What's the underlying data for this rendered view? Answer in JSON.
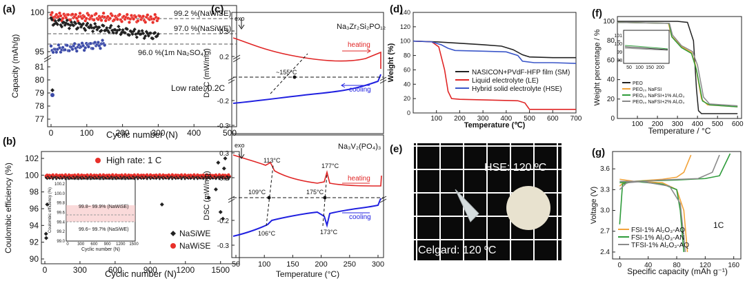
{
  "panel_labels": {
    "a": "(a)",
    "b": "(b)",
    "c": "(c)",
    "d": "(d)",
    "e": "(e)",
    "f": "(f)",
    "g": "(g)"
  },
  "chart_data": [
    {
      "panel": "a",
      "type": "scatter",
      "xlabel": "Cyclic number (N)",
      "ylabel": "Capacity (mAh/g)",
      "xticks": [
        "0",
        "100",
        "200",
        "300",
        "400",
        "500"
      ],
      "yticks_top": [
        "100",
        "95"
      ],
      "yticks_bottom": [
        "81",
        "80",
        "79",
        "78",
        "77"
      ],
      "annotations": [
        "99.2 %(NaWiSE)",
        "97.0 %(NaSiWE)",
        "96.0 %(1m Na₂SO₄)",
        "Low rate: 0.2C"
      ],
      "series": [
        {
          "name": "NaWiSE",
          "color": "#e8302a",
          "x": [
            0,
            300
          ],
          "y_start": 99.5,
          "y_end": 99.2
        },
        {
          "name": "NaSiWE",
          "color": "#222222",
          "x": [
            0,
            300
          ],
          "y_start": 98.8,
          "y_end": 97.0
        },
        {
          "name": "1m Na2SO4",
          "color": "#3b4aa8",
          "x": [
            0,
            150
          ],
          "y_start": 95.2,
          "y_end": 96.0
        }
      ]
    },
    {
      "panel": "b",
      "type": "scatter",
      "xlabel": "Cyclic number (N)",
      "ylabel": "Coulombic efficiency (%)",
      "xticks": [
        "0",
        "300",
        "600",
        "900",
        "1200",
        "1500"
      ],
      "yticks": [
        "90",
        "92",
        "94",
        "96",
        "98",
        "100",
        "102"
      ],
      "annotation": "High rate: 1 C",
      "legend": [
        "NaSiWE",
        "NaWiSE"
      ],
      "inset": {
        "ylabel": "Coulombic efficiency (%)",
        "xlabel": "Cyclic number (N)",
        "xticks": [
          "0",
          "300",
          "600",
          "900",
          "1200",
          "1500"
        ],
        "yticks": [
          "99.0",
          "99.2",
          "99.4",
          "99.6",
          "99.8",
          "100.0",
          "100.2"
        ],
        "annotations": [
          "99.8~ 99.9% (NaWiSE)",
          "99.6~ 99.7% (NaSiWE)"
        ]
      },
      "series": [
        {
          "name": "NaWiSE",
          "color": "#e8302a",
          "value": 99.85
        },
        {
          "name": "NaSiWE",
          "color": "#222222",
          "value": 99.65
        }
      ]
    },
    {
      "panel": "c",
      "type": "line",
      "xlabel": "Temperature (°C)",
      "ylabel": "DSC (mW/mg)",
      "xticks": [
        "50",
        "100",
        "150",
        "200",
        "250",
        "300"
      ],
      "top": {
        "formula": "Na₃Zr₂Si₂PO₁₂",
        "exo": "exo",
        "yticks": [
          "0.3",
          "0.2",
          "-0.2",
          "-0.3"
        ],
        "annotations": [
          "~155°C",
          "heating",
          "cooling"
        ]
      },
      "bottom": {
        "formula": "Na₃V₂(PO₄)₃",
        "exo": "exo",
        "yticks": [
          "0.3",
          "0.2",
          "-0.2",
          "-0.3"
        ],
        "annotations": [
          "113°C",
          "177°C",
          "109°C",
          "175°C",
          "106°C",
          "173°C",
          "heating",
          "cooling"
        ]
      }
    },
    {
      "panel": "d",
      "type": "line",
      "xlabel": "Temperature (℃)",
      "ylabel": "Weight (%)",
      "xticks": [
        "100",
        "200",
        "300",
        "400",
        "500",
        "600",
        "700"
      ],
      "yticks": [
        "0",
        "20",
        "40",
        "60",
        "80",
        "100",
        "120",
        "140"
      ],
      "ylim": [
        0,
        140
      ],
      "xlim": [
        0,
        700
      ],
      "series": [
        {
          "name": "NASICON+PVdF-HFP film (SM)",
          "color": "#222222",
          "points": [
            [
              0,
              100
            ],
            [
              100,
              99
            ],
            [
              200,
              97
            ],
            [
              300,
              95
            ],
            [
              380,
              93
            ],
            [
              430,
              88
            ],
            [
              470,
              81
            ],
            [
              500,
              78
            ],
            [
              600,
              77
            ],
            [
              700,
              77
            ]
          ]
        },
        {
          "name": "Liquid electrolyte (LE)",
          "color": "#e02525",
          "points": [
            [
              0,
              100
            ],
            [
              80,
              99
            ],
            [
              110,
              92
            ],
            [
              135,
              60
            ],
            [
              150,
              30
            ],
            [
              165,
              20
            ],
            [
              200,
              19
            ],
            [
              320,
              18
            ],
            [
              450,
              17
            ],
            [
              480,
              14
            ],
            [
              500,
              5
            ],
            [
              600,
              5
            ],
            [
              700,
              5
            ]
          ]
        },
        {
          "name": "Hybrid solid electrolyte (HSE)",
          "color": "#3a56c9",
          "points": [
            [
              0,
              100
            ],
            [
              80,
              99
            ],
            [
              120,
              95
            ],
            [
              150,
              90
            ],
            [
              180,
              87
            ],
            [
              300,
              86
            ],
            [
              400,
              85
            ],
            [
              450,
              80
            ],
            [
              470,
              72
            ],
            [
              520,
              70
            ],
            [
              600,
              70
            ],
            [
              700,
              69
            ]
          ]
        }
      ]
    },
    {
      "panel": "e",
      "type": "photo",
      "labels": [
        "HSE: 120 ºC",
        "Celgard: 120 ºC"
      ]
    },
    {
      "panel": "f",
      "type": "line",
      "xlabel": "Temperature / °C",
      "ylabel": "Weight percentage / %",
      "xticks": [
        "100",
        "200",
        "300",
        "400",
        "500",
        "600"
      ],
      "yticks": [
        "0",
        "20",
        "40",
        "60",
        "80",
        "100"
      ],
      "xlim": [
        0,
        620
      ],
      "ylim": [
        0,
        105
      ],
      "inset": {
        "xticks": [
          "50",
          "100",
          "150",
          "200"
        ],
        "yticks": [
          "98",
          "99",
          "100",
          "101"
        ]
      },
      "series": [
        {
          "name": "PEO",
          "color": "#222222",
          "points": [
            [
              0,
              100
            ],
            [
              300,
              100
            ],
            [
              350,
              99
            ],
            [
              380,
              80
            ],
            [
              395,
              30
            ],
            [
              405,
              8
            ],
            [
              420,
              5
            ],
            [
              600,
              5
            ]
          ]
        },
        {
          "name": "PEO₂₀ NaFSI",
          "color": "#f2a33a",
          "points": [
            [
              0,
              99
            ],
            [
              255,
              98
            ],
            [
              270,
              85
            ],
            [
              320,
              74
            ],
            [
              370,
              68
            ],
            [
              390,
              55
            ],
            [
              420,
              20
            ],
            [
              450,
              14
            ],
            [
              600,
              12
            ]
          ]
        },
        {
          "name": "PEO₂₀ NaFSI+1% Al₂O₃",
          "color": "#2e9b3a",
          "points": [
            [
              0,
              99
            ],
            [
              258,
              98
            ],
            [
              272,
              84
            ],
            [
              320,
              73
            ],
            [
              370,
              67
            ],
            [
              395,
              50
            ],
            [
              425,
              18
            ],
            [
              460,
              14
            ],
            [
              600,
              12
            ]
          ]
        },
        {
          "name": "PEO₂₀ NaFSI+2% Al₂O₃",
          "color": "#8a8a8a",
          "points": [
            [
              0,
              99
            ],
            [
              260,
              98
            ],
            [
              275,
              86
            ],
            [
              320,
              75
            ],
            [
              375,
              69
            ],
            [
              400,
              55
            ],
            [
              430,
              22
            ],
            [
              460,
              15
            ],
            [
              600,
              13
            ]
          ]
        }
      ]
    },
    {
      "panel": "g",
      "type": "line",
      "xlabel": "Specific capacity (mAh g⁻¹)",
      "ylabel": "Voltage (V)",
      "xticks": [
        "0",
        "40",
        "80",
        "120",
        "160"
      ],
      "yticks": [
        "2.4",
        "2.7",
        "3.0",
        "3.3",
        "3.6"
      ],
      "xlim": [
        -10,
        170
      ],
      "ylim": [
        2.3,
        3.85
      ],
      "annotation": "1C",
      "series": [
        {
          "name": "FSI-1% Al₂O₃-AQ",
          "color": "#f2a33a",
          "charge": [
            [
              0,
              3.35
            ],
            [
              5,
              3.4
            ],
            [
              20,
              3.42
            ],
            [
              60,
              3.45
            ],
            [
              80,
              3.48
            ],
            [
              90,
              3.55
            ],
            [
              100,
              3.8
            ]
          ],
          "discharge": [
            [
              0,
              3.45
            ],
            [
              20,
              3.42
            ],
            [
              60,
              3.4
            ],
            [
              80,
              3.3
            ],
            [
              90,
              3.0
            ],
            [
              95,
              2.4
            ]
          ]
        },
        {
          "name": "FSI-1% Al₂O₃-AN",
          "color": "#2e9b3a",
          "charge": [
            [
              0,
              2.8
            ],
            [
              4,
              3.38
            ],
            [
              20,
              3.42
            ],
            [
              80,
              3.44
            ],
            [
              120,
              3.46
            ],
            [
              140,
              3.5
            ],
            [
              155,
              3.82
            ]
          ],
          "discharge": [
            [
              0,
              3.4
            ],
            [
              20,
              3.42
            ],
            [
              60,
              3.38
            ],
            [
              80,
              3.3
            ],
            [
              85,
              3.0
            ],
            [
              90,
              2.4
            ]
          ]
        },
        {
          "name": "TFSI-1% Al₂O₃-AQ",
          "color": "#8a8a8a",
          "charge": [
            [
              0,
              3.3
            ],
            [
              10,
              3.4
            ],
            [
              60,
              3.44
            ],
            [
              110,
              3.46
            ],
            [
              130,
              3.55
            ],
            [
              140,
              3.8
            ]
          ],
          "discharge": [
            [
              0,
              3.42
            ],
            [
              30,
              3.42
            ],
            [
              70,
              3.35
            ],
            [
              85,
              3.1
            ],
            [
              92,
              2.4
            ]
          ]
        }
      ]
    }
  ]
}
